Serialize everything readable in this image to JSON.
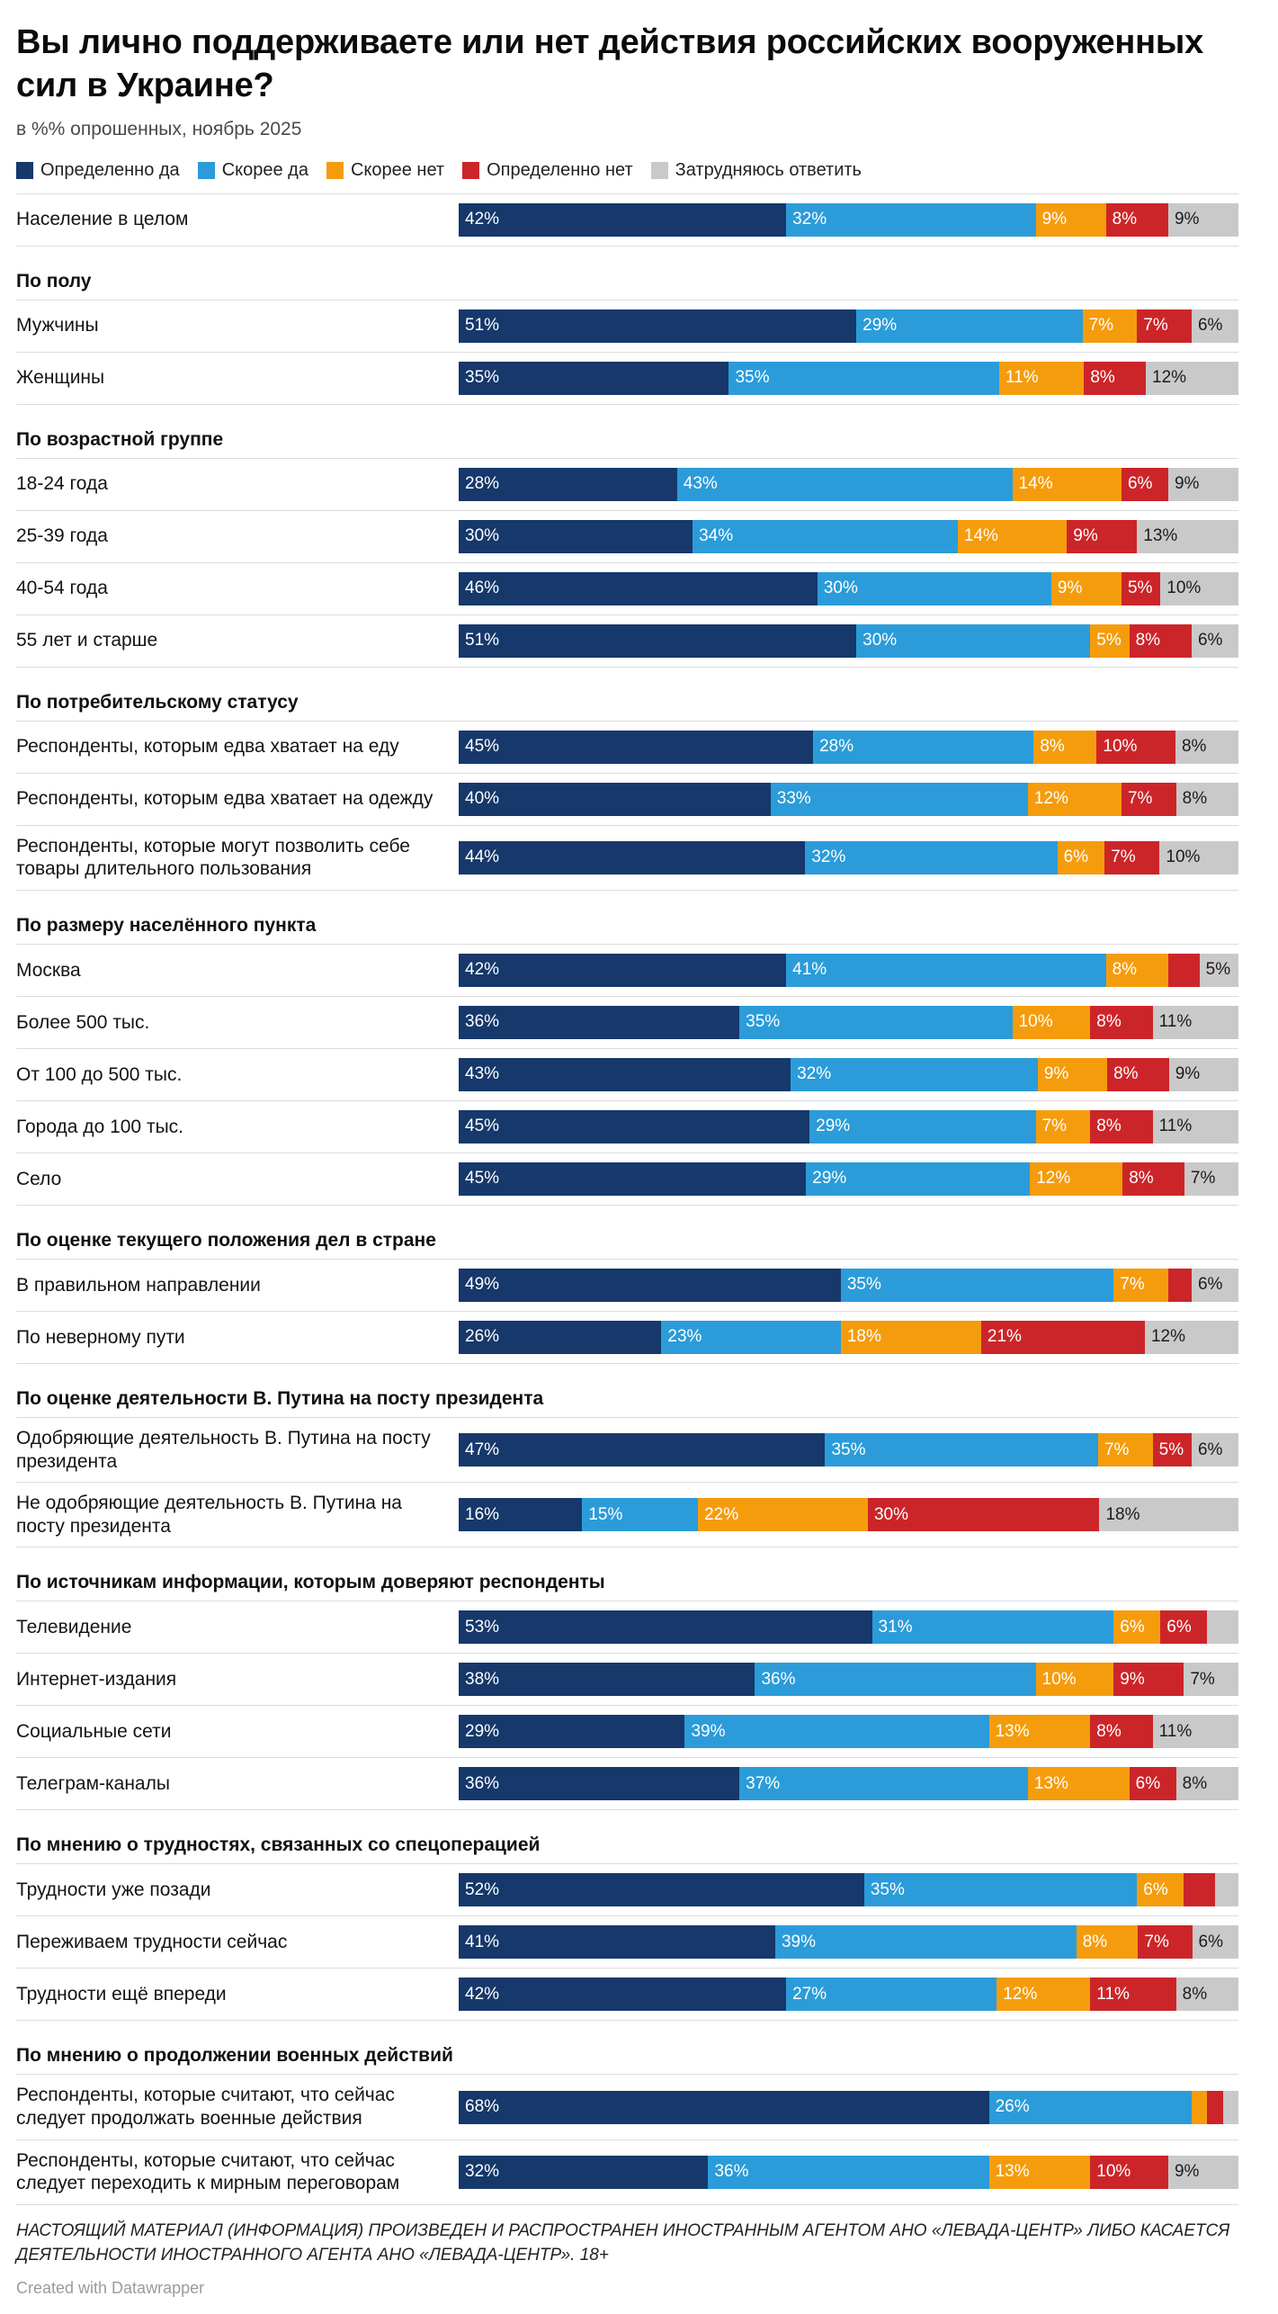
{
  "title": "Вы лично поддерживаете или нет действия российских вооруженных сил в Украине?",
  "subtitle": "в %% опрошенных, ноябрь 2025",
  "legend": [
    {
      "label": "Определенно да",
      "color": "#16386b"
    },
    {
      "label": "Скорее да",
      "color": "#2b9cd9"
    },
    {
      "label": "Скорее нет",
      "color": "#f59c0d"
    },
    {
      "label": "Определенно нет",
      "color": "#cc2529"
    },
    {
      "label": "Затрудняюсь ответить",
      "color": "#c9c9c9"
    }
  ],
  "chart_data": {
    "type": "bar",
    "stacked": true,
    "orientation": "horizontal",
    "xlim": [
      0,
      100
    ],
    "unit": "%",
    "label_min": 5,
    "colors": [
      "#16386b",
      "#2b9cd9",
      "#f59c0d",
      "#cc2529",
      "#c9c9c9"
    ],
    "series_names": [
      "Определенно да",
      "Скорее да",
      "Скорее нет",
      "Определенно нет",
      "Затрудняюсь ответить"
    ],
    "groups": [
      {
        "header": "",
        "rows": [
          {
            "label": "Население в целом",
            "values": [
              42,
              32,
              9,
              8,
              9
            ]
          }
        ]
      },
      {
        "header": "По полу",
        "rows": [
          {
            "label": "Мужчины",
            "values": [
              51,
              29,
              7,
              7,
              6
            ]
          },
          {
            "label": "Женщины",
            "values": [
              35,
              35,
              11,
              8,
              12
            ]
          }
        ]
      },
      {
        "header": "По возрастной группе",
        "rows": [
          {
            "label": "18-24 года",
            "values": [
              28,
              43,
              14,
              6,
              9
            ]
          },
          {
            "label": "25-39 года",
            "values": [
              30,
              34,
              14,
              9,
              13
            ]
          },
          {
            "label": "40-54 года",
            "values": [
              46,
              30,
              9,
              5,
              10
            ]
          },
          {
            "label": "55 лет и старше",
            "values": [
              51,
              30,
              5,
              8,
              6
            ]
          }
        ]
      },
      {
        "header": "По потребительскому статусу",
        "rows": [
          {
            "label": "Респонденты, которым едва хватает на еду",
            "values": [
              45,
              28,
              8,
              10,
              8
            ]
          },
          {
            "label": "Респонденты, которым едва хватает на одежду",
            "values": [
              40,
              33,
              12,
              7,
              8
            ]
          },
          {
            "label": "Респонденты, которые могут позволить себе товары длительного пользования",
            "values": [
              44,
              32,
              6,
              7,
              10
            ]
          }
        ]
      },
      {
        "header": "По размеру населённого пункта",
        "rows": [
          {
            "label": "Москва",
            "values": [
              42,
              41,
              8,
              4,
              5
            ]
          },
          {
            "label": "Более 500 тыс.",
            "values": [
              36,
              35,
              10,
              8,
              11
            ]
          },
          {
            "label": "От 100 до 500 тыс.",
            "values": [
              43,
              32,
              9,
              8,
              9
            ]
          },
          {
            "label": "Города до 100 тыс.",
            "values": [
              45,
              29,
              7,
              8,
              11
            ]
          },
          {
            "label": "Село",
            "values": [
              45,
              29,
              12,
              8,
              7
            ]
          }
        ]
      },
      {
        "header": "По оценке текущего положения дел в стране",
        "rows": [
          {
            "label": "В правильном направлении",
            "values": [
              49,
              35,
              7,
              3,
              6
            ]
          },
          {
            "label": "По неверному пути",
            "values": [
              26,
              23,
              18,
              21,
              12
            ]
          }
        ]
      },
      {
        "header": "По оценке деятельности В. Путина на посту президента",
        "rows": [
          {
            "label": "Одобряющие деятельность В. Путина на посту президента",
            "values": [
              47,
              35,
              7,
              5,
              6
            ]
          },
          {
            "label": "Не одобряющие деятельность В. Путина на посту президента",
            "values": [
              16,
              15,
              22,
              30,
              18
            ]
          }
        ]
      },
      {
        "header": "По источникам информации, которым доверяют респонденты",
        "rows": [
          {
            "label": "Телевидение",
            "values": [
              53,
              31,
              6,
              6,
              4
            ]
          },
          {
            "label": "Интернет-издания",
            "values": [
              38,
              36,
              10,
              9,
              7
            ]
          },
          {
            "label": "Социальные сети",
            "values": [
              29,
              39,
              13,
              8,
              11
            ]
          },
          {
            "label": "Телеграм-каналы",
            "values": [
              36,
              37,
              13,
              6,
              8
            ]
          }
        ]
      },
      {
        "header": "По мнению о трудностях, связанных со спецоперацией",
        "rows": [
          {
            "label": "Трудности уже позади",
            "values": [
              52,
              35,
              6,
              4,
              3
            ]
          },
          {
            "label": "Переживаем трудности сейчас",
            "values": [
              41,
              39,
              8,
              7,
              6
            ]
          },
          {
            "label": "Трудности ещё впереди",
            "values": [
              42,
              27,
              12,
              11,
              8
            ]
          }
        ]
      },
      {
        "header": "По мнению о продолжении военных действий",
        "rows": [
          {
            "label": "Респонденты, которые считают, что сейчас следует продолжать военные действия",
            "values": [
              68,
              26,
              2,
              2,
              2
            ]
          },
          {
            "label": "Респонденты, которые считают, что сейчас следует переходить к мирным переговорам",
            "values": [
              32,
              36,
              13,
              10,
              9
            ]
          }
        ]
      }
    ]
  },
  "footer": {
    "note": "НАСТОЯЩИЙ МАТЕРИАЛ (ИНФОРМАЦИЯ) ПРОИЗВЕДЕН И РАСПРОСТРАНЕН ИНОСТРАННЫМ АГЕНТОМ АНО «ЛЕВАДА-ЦЕНТР» ЛИБО КАСАЕТСЯ ДЕЯТЕЛЬНОСТИ ИНОСТРАННОГО АГЕНТА АНО «ЛЕВАДА-ЦЕНТР». 18+",
    "attribution": "Created with Datawrapper"
  }
}
